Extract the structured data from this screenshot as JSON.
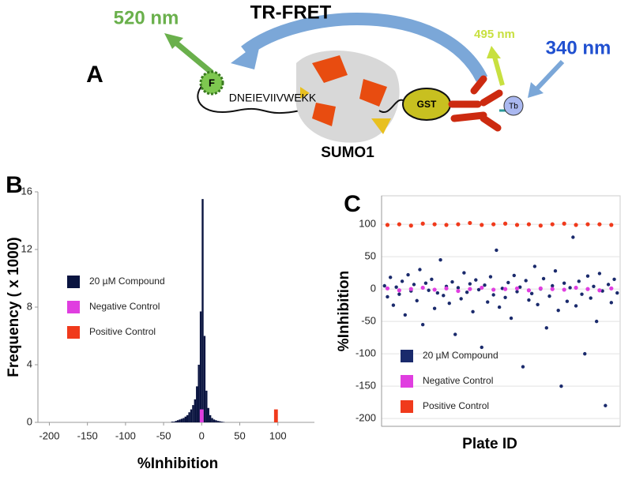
{
  "diagram": {
    "panel": "A",
    "emission_acceptor": "520 nm",
    "fret": "TR-FRET",
    "emission_donor": "495 nm",
    "excitation": "340 nm",
    "fluor": "F",
    "peptide": "DNEIEVIIVWEKK",
    "gst": "GST",
    "terbium": "Tb",
    "protein": "SUMO1"
  },
  "chart_data": [
    {
      "type": "histogram",
      "panel": "B",
      "x_label": "%Inhibition",
      "y_label": "Frequency ( x 1000)",
      "xlim": [
        -215,
        148
      ],
      "xticks": [
        -200,
        -150,
        -100,
        -50,
        0,
        50,
        100
      ],
      "ylim": [
        0,
        16
      ],
      "yticks": [
        0,
        4,
        8,
        12,
        16
      ],
      "grid": false,
      "legend": "left",
      "series": [
        {
          "name": "20 µM Compound",
          "color": "#0a1440",
          "bins": [
            -40,
            -37.5,
            -35,
            -32.5,
            -30,
            -27.5,
            -25,
            -22.5,
            -20,
            -17.5,
            -15,
            -12.5,
            -10,
            -7.5,
            -5,
            -2.5,
            0,
            2.5,
            5,
            7.5,
            10,
            12.5,
            15,
            17.5,
            20,
            22.5,
            25,
            27.5,
            30
          ],
          "values": [
            0.05,
            0.05,
            0.1,
            0.15,
            0.2,
            0.25,
            0.3,
            0.4,
            0.5,
            0.7,
            0.9,
            1.2,
            1.6,
            2.5,
            4.0,
            7.7,
            15.5,
            6.0,
            2.2,
            1.0,
            0.5,
            0.3,
            0.2,
            0.15,
            0.1,
            0.08,
            0.05,
            0.03
          ]
        },
        {
          "name": "Negative Control",
          "color": "#e03ee0",
          "bins": [
            -2.5,
            2.5
          ],
          "values": [
            0.9
          ]
        },
        {
          "name": "Positive Control",
          "color": "#f03a1c",
          "bins": [
            95,
            100
          ],
          "values": [
            0.9
          ]
        }
      ]
    },
    {
      "type": "scatter",
      "panel": "C",
      "x_label": "Plate ID",
      "y_label": "%Inhibition",
      "xlim": [
        0,
        81
      ],
      "ylim": [
        -212,
        144
      ],
      "yticks": [
        -200,
        -150,
        -100,
        -50,
        0,
        50,
        100
      ],
      "grid": true,
      "legend": "lower left",
      "series": [
        {
          "name": "20 µM Compound",
          "color": "#1a2a6c",
          "x": [
            1,
            2,
            3,
            4,
            5,
            6,
            7,
            8,
            9,
            10,
            11,
            12,
            13,
            14,
            15,
            16,
            17,
            18,
            19,
            20,
            21,
            22,
            23,
            24,
            25,
            26,
            27,
            28,
            29,
            30,
            31,
            32,
            33,
            34,
            35,
            36,
            37,
            38,
            39,
            40,
            41,
            42,
            43,
            44,
            45,
            46,
            47,
            48,
            49,
            50,
            51,
            52,
            53,
            54,
            55,
            56,
            57,
            58,
            59,
            60,
            61,
            62,
            63,
            64,
            65,
            66,
            67,
            68,
            69,
            70,
            71,
            72,
            73,
            74,
            75,
            76,
            77,
            78,
            79,
            80
          ],
          "values": [
            5,
            -12,
            18,
            -25,
            3,
            -8,
            12,
            -40,
            22,
            -3,
            7,
            -18,
            30,
            -55,
            9,
            -2,
            15,
            -30,
            -6,
            45,
            -10,
            4,
            -22,
            11,
            -70,
            2,
            -15,
            25,
            -5,
            8,
            -35,
            14,
            -1,
            -90,
            6,
            -20,
            19,
            -9,
            60,
            -28,
            1,
            -13,
            10,
            -45,
            21,
            -4,
            3,
            -120,
            13,
            -17,
            -7,
            35,
            -24,
            0,
            16,
            -60,
            -11,
            5,
            28,
            -33,
            -150,
            9,
            -19,
            2,
            80,
            -26,
            12,
            -8,
            -100,
            20,
            -14,
            4,
            -50,
            24,
            -3,
            -180,
            7,
            -21,
            15,
            -6
          ]
        },
        {
          "name": "Negative Control",
          "color": "#e03ee0",
          "x": [
            2,
            6,
            10,
            14,
            18,
            22,
            26,
            30,
            34,
            38,
            42,
            46,
            50,
            54,
            58,
            62,
            66,
            70,
            74,
            78
          ],
          "values": [
            1,
            -2,
            0,
            2,
            -1,
            1,
            -3,
            0,
            2,
            -1,
            0,
            1,
            -2,
            1,
            0,
            -1,
            2,
            0,
            -2,
            1
          ]
        },
        {
          "name": "Positive Control",
          "color": "#f03a1c",
          "x": [
            2,
            6,
            10,
            14,
            18,
            22,
            26,
            30,
            34,
            38,
            42,
            46,
            50,
            54,
            58,
            62,
            66,
            70,
            74,
            78
          ],
          "values": [
            99,
            100,
            98,
            101,
            100,
            99,
            100,
            102,
            99,
            100,
            101,
            99,
            100,
            98,
            100,
            101,
            99,
            100,
            100,
            99
          ]
        }
      ]
    }
  ]
}
